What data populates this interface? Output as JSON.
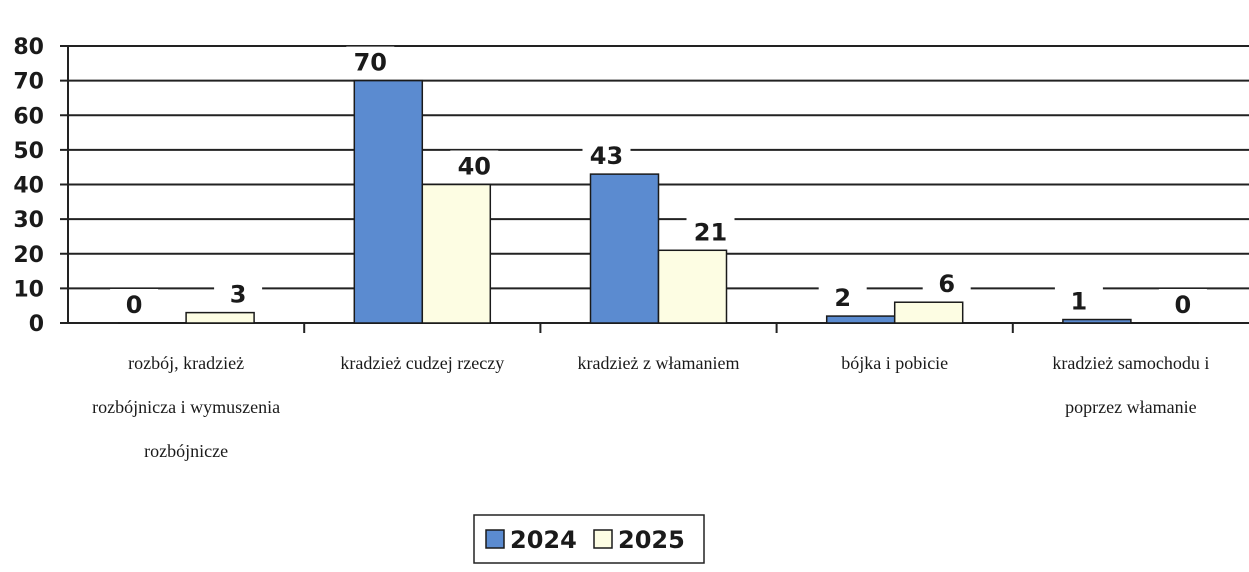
{
  "chart_data": {
    "type": "bar",
    "title": "",
    "xlabel": "",
    "ylabel": "",
    "ylim": [
      0,
      80
    ],
    "yticks": [
      0,
      10,
      20,
      30,
      40,
      50,
      60,
      70,
      80
    ],
    "grid": true,
    "legend_position": "bottom-center",
    "categories": [
      [
        "rozbój, kradzież",
        "rozbójnicza i wymuszenia",
        "rozbójnicze"
      ],
      [
        "kradzież cudzej rzeczy"
      ],
      [
        "kradzież z włamaniem"
      ],
      [
        "bójka i pobicie"
      ],
      [
        "kradzież samochodu i",
        "poprzez włamanie"
      ]
    ],
    "series": [
      {
        "name": "2024",
        "values": [
          0,
          70,
          43,
          2,
          1
        ],
        "color": "#5b8bd0"
      },
      {
        "name": "2025",
        "values": [
          3,
          40,
          21,
          6,
          0
        ],
        "color": "#fdfde3"
      }
    ]
  }
}
